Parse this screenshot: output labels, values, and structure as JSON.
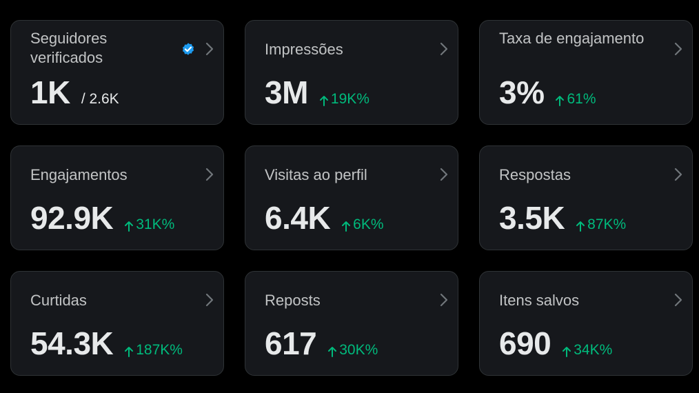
{
  "colors": {
    "background": "#000000",
    "card": "#16181c",
    "card_border": "#2f3336",
    "text": "#e7e9ea",
    "muted": "#71767b",
    "positive": "#00ba7c",
    "verified": "#1d9bf0"
  },
  "cards": [
    {
      "title": "Seguidores verificados",
      "value": "1K",
      "total": "/ 2.6K",
      "verified_icon": "verified-badge-icon",
      "chevron_icon": "chevron-right-icon"
    },
    {
      "title": "Impressões",
      "value": "3M",
      "change": "19K%",
      "change_icon": "arrow-up-icon",
      "chevron_icon": "chevron-right-icon"
    },
    {
      "title": "Taxa de engajamento",
      "value": "3%",
      "change": "61%",
      "change_icon": "arrow-up-icon",
      "chevron_icon": "chevron-right-icon"
    },
    {
      "title": "Engajamentos",
      "value": "92.9K",
      "change": "31K%",
      "change_icon": "arrow-up-icon",
      "chevron_icon": "chevron-right-icon"
    },
    {
      "title": "Visitas ao perfil",
      "value": "6.4K",
      "change": "6K%",
      "change_icon": "arrow-up-icon",
      "chevron_icon": "chevron-right-icon"
    },
    {
      "title": "Respostas",
      "value": "3.5K",
      "change": "87K%",
      "change_icon": "arrow-up-icon",
      "chevron_icon": "chevron-right-icon"
    },
    {
      "title": "Curtidas",
      "value": "54.3K",
      "change": "187K%",
      "change_icon": "arrow-up-icon",
      "chevron_icon": "chevron-right-icon"
    },
    {
      "title": "Reposts",
      "value": "617",
      "change": "30K%",
      "change_icon": "arrow-up-icon",
      "chevron_icon": "chevron-right-icon"
    },
    {
      "title": "Itens salvos",
      "value": "690",
      "change": "34K%",
      "change_icon": "arrow-up-icon",
      "chevron_icon": "chevron-right-icon"
    }
  ]
}
